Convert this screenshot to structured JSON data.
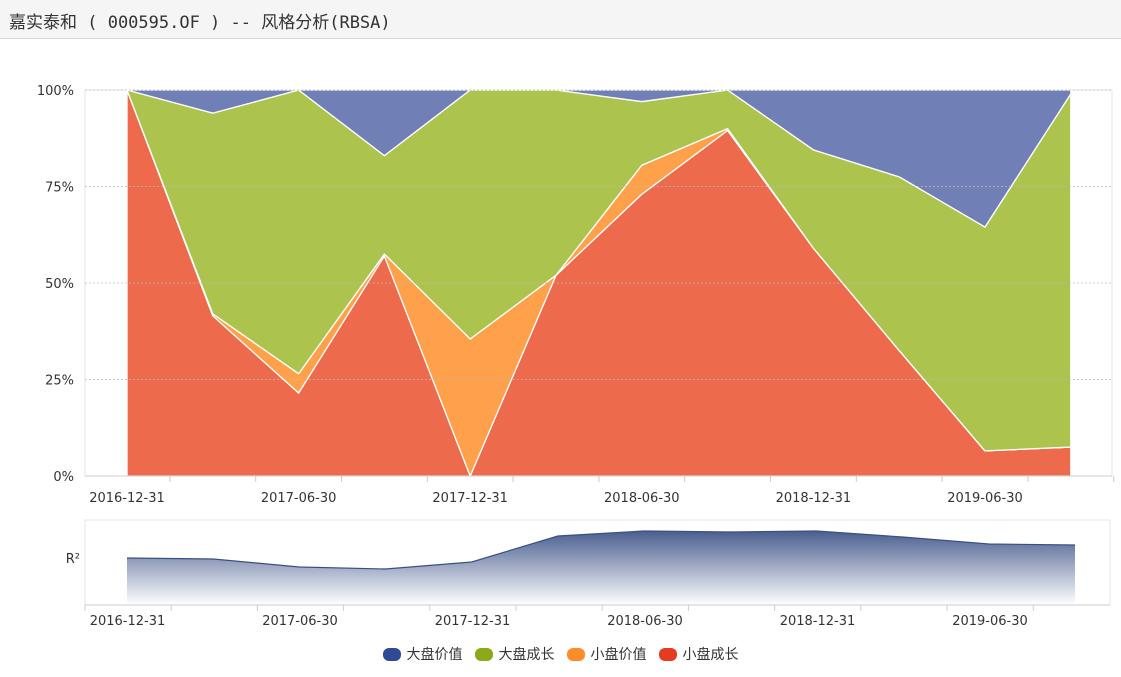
{
  "title": "嘉实泰和 ( 000595.OF ) -- 风格分析(RBSA)",
  "chart_data": {
    "type": "area",
    "stacked": true,
    "x": [
      "2016-12-31",
      "2017-03-31",
      "2017-06-30",
      "2017-09-30",
      "2017-12-31",
      "2018-03-31",
      "2018-06-30",
      "2018-09-30",
      "2018-12-31",
      "2019-03-31",
      "2019-06-30",
      "2019-09-30"
    ],
    "x_tick_labels": [
      "2016-12-31",
      "2017-06-30",
      "2017-12-31",
      "2018-06-30",
      "2018-12-31",
      "2019-06-30"
    ],
    "y_tick_labels": [
      "0%",
      "25%",
      "50%",
      "75%",
      "100%"
    ],
    "ylim": [
      0,
      100
    ],
    "grid": true,
    "legend_position": "bottom",
    "series": [
      {
        "name": "小盘成长",
        "color": "#ee6a4d",
        "values": [
          100,
          41.5,
          21.5,
          57,
          0,
          52,
          73,
          89.5,
          59,
          32.5,
          6.5,
          7.5
        ]
      },
      {
        "name": "小盘价值",
        "color": "#ffa04a",
        "values": [
          0,
          0.5,
          5,
          0.5,
          35.5,
          0,
          7.5,
          0.5,
          0,
          0,
          0,
          0
        ]
      },
      {
        "name": "大盘成长",
        "color": "#acc34e",
        "values": [
          0,
          52,
          73.5,
          25.5,
          64.5,
          48,
          16.5,
          10,
          25.5,
          45,
          58,
          91.5
        ]
      },
      {
        "name": "大盘价值",
        "color": "#7080b7",
        "values": [
          0,
          6,
          0,
          17,
          0,
          0,
          3,
          0,
          15.5,
          22.5,
          35.5,
          1
        ]
      }
    ],
    "legend_colors": [
      "#2e4a94",
      "#8aaa1a",
      "#ff8c2a",
      "#e43b22"
    ],
    "r2": {
      "label": "R²",
      "values": [
        0.77,
        0.76,
        0.68,
        0.66,
        0.73,
        0.99,
        1.04,
        1.03,
        1.04,
        0.98,
        0.91,
        0.9
      ]
    }
  }
}
